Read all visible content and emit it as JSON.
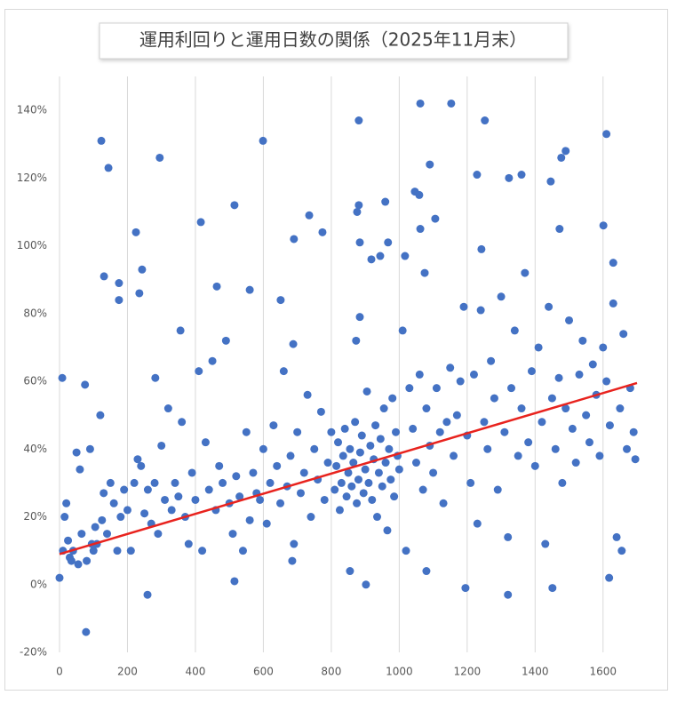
{
  "chart_data": {
    "type": "scatter",
    "title": "運用利回りと運用日数の関係（2025年11月末）",
    "color": "#4472c4",
    "x": [
      0,
      8,
      78,
      123,
      144,
      295,
      131,
      175,
      175,
      243,
      235,
      225,
      259,
      282,
      356,
      416,
      463,
      515,
      560,
      599,
      651,
      515,
      688,
      735,
      690,
      774,
      881,
      876,
      881,
      884,
      884,
      873,
      902,
      959,
      967,
      918,
      944,
      1017,
      1046,
      1062,
      1153,
      1059,
      1106,
      1090,
      1062,
      1075,
      1252,
      1229,
      1242,
      1323,
      1360,
      1477,
      1490,
      1446,
      1472,
      1610,
      1601,
      1630,
      1195,
      1320,
      1451,
      1618,
      855,
      1080,
      685,
      1655,
      10,
      15,
      20,
      25,
      30,
      35,
      40,
      50,
      55,
      60,
      65,
      75,
      80,
      90,
      95,
      100,
      105,
      110,
      120,
      125,
      130,
      140,
      150,
      160,
      170,
      180,
      190,
      200,
      210,
      220,
      230,
      240,
      250,
      260,
      270,
      280,
      290,
      300,
      310,
      320,
      330,
      340,
      350,
      360,
      370,
      380,
      390,
      400,
      410,
      420,
      430,
      440,
      450,
      460,
      470,
      480,
      490,
      500,
      510,
      520,
      530,
      540,
      550,
      560,
      570,
      580,
      590,
      600,
      610,
      620,
      630,
      640,
      650,
      660,
      670,
      680,
      690,
      700,
      710,
      720,
      730,
      740,
      750,
      760,
      770,
      780,
      790,
      800,
      810,
      815,
      820,
      825,
      830,
      835,
      840,
      845,
      850,
      855,
      860,
      865,
      870,
      875,
      880,
      885,
      890,
      895,
      900,
      905,
      910,
      915,
      920,
      925,
      930,
      935,
      940,
      945,
      950,
      955,
      960,
      965,
      970,
      975,
      980,
      985,
      990,
      995,
      1000,
      1010,
      1020,
      1030,
      1040,
      1050,
      1060,
      1070,
      1080,
      1090,
      1100,
      1110,
      1120,
      1130,
      1140,
      1150,
      1160,
      1170,
      1180,
      1190,
      1200,
      1210,
      1220,
      1230,
      1240,
      1250,
      1260,
      1270,
      1280,
      1290,
      1300,
      1310,
      1320,
      1330,
      1340,
      1350,
      1360,
      1370,
      1380,
      1390,
      1400,
      1410,
      1420,
      1430,
      1440,
      1450,
      1460,
      1470,
      1480,
      1490,
      1500,
      1510,
      1520,
      1530,
      1540,
      1550,
      1560,
      1570,
      1580,
      1590,
      1600,
      1610,
      1620,
      1630,
      1640,
      1650,
      1660,
      1670,
      1680,
      1690,
      1695
    ],
    "values": [
      2,
      61,
      -14,
      131,
      123,
      126,
      91,
      89,
      84,
      93,
      86,
      104,
      -3,
      61,
      75,
      107,
      88,
      112,
      87,
      131,
      84,
      1,
      71,
      109,
      102,
      104,
      137,
      110,
      112,
      101,
      79,
      72,
      0,
      113,
      101,
      96,
      97,
      97,
      116,
      142,
      142,
      115,
      108,
      124,
      105,
      92,
      137,
      121,
      99,
      120,
      121,
      126,
      128,
      119,
      105,
      133,
      106,
      95,
      -1,
      -3,
      -1,
      2,
      4,
      4,
      7,
      10,
      10,
      20,
      24,
      13,
      8,
      7,
      10,
      39,
      6,
      34,
      15,
      59,
      7,
      40,
      12,
      10,
      17,
      12,
      50,
      19,
      27,
      15,
      30,
      24,
      10,
      20,
      28,
      22,
      10,
      30,
      37,
      35,
      21,
      28,
      18,
      30,
      15,
      41,
      25,
      52,
      22,
      30,
      26,
      48,
      20,
      12,
      33,
      25,
      63,
      10,
      42,
      28,
      66,
      22,
      35,
      30,
      72,
      24,
      15,
      32,
      26,
      10,
      45,
      19,
      33,
      27,
      25,
      40,
      18,
      30,
      47,
      35,
      24,
      63,
      29,
      38,
      12,
      45,
      27,
      33,
      56,
      20,
      40,
      31,
      51,
      25,
      36,
      45,
      28,
      35,
      42,
      22,
      30,
      38,
      46,
      26,
      33,
      40,
      29,
      36,
      48,
      24,
      31,
      39,
      44,
      27,
      34,
      57,
      30,
      41,
      25,
      37,
      47,
      20,
      33,
      43,
      29,
      52,
      36,
      16,
      40,
      31,
      55,
      26,
      45,
      38,
      34,
      75,
      10,
      58,
      46,
      36,
      62,
      28,
      52,
      41,
      33,
      58,
      45,
      24,
      48,
      64,
      38,
      50,
      60,
      82,
      44,
      30,
      62,
      18,
      81,
      48,
      40,
      66,
      55,
      28,
      85,
      45,
      14,
      58,
      75,
      38,
      52,
      92,
      42,
      63,
      35,
      70,
      48,
      12,
      82,
      55,
      40,
      61,
      30,
      52,
      78,
      46,
      36,
      62,
      72,
      50,
      42,
      65,
      56,
      38,
      70,
      60,
      47,
      83,
      14,
      52,
      74,
      40,
      58,
      45,
      37
    ],
    "trendline": {
      "color": "#e8231e",
      "x": [
        0,
        1700
      ],
      "values": [
        9,
        59.5
      ]
    },
    "xlim": [
      0,
      1700
    ],
    "xticks": [
      0,
      200,
      400,
      600,
      800,
      1000,
      1200,
      1400,
      1600
    ],
    "ylim": [
      -20,
      150
    ],
    "yticks": [
      {
        "value": -20,
        "label": "-20%"
      },
      {
        "value": 0,
        "label": "0%"
      },
      {
        "value": 20,
        "label": "20%"
      },
      {
        "value": 40,
        "label": "40%"
      },
      {
        "value": 60,
        "label": "60%"
      },
      {
        "value": 80,
        "label": "80%"
      },
      {
        "value": 100,
        "label": "100%"
      },
      {
        "value": 120,
        "label": "120%"
      },
      {
        "value": 140,
        "label": "140%"
      }
    ],
    "grid": "x"
  }
}
